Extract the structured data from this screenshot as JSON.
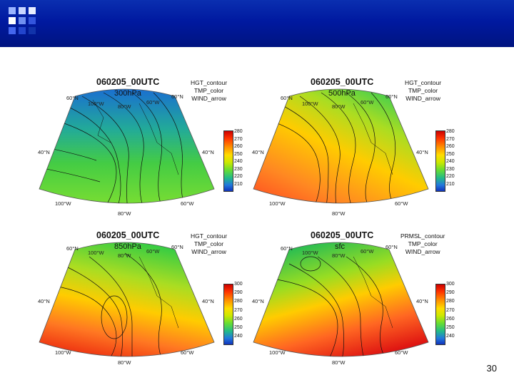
{
  "slide": {
    "page_number": "30"
  },
  "panels": [
    {
      "title": "060205_00UTC",
      "level": "300hPa",
      "vars": [
        "HGT_contour",
        "TMP_color",
        "WIND_arrow"
      ],
      "colorbar": [
        "280",
        "270",
        "260",
        "250",
        "240",
        "230",
        "220",
        "210"
      ],
      "labels": {
        "lat_nw": "60°N",
        "lat_ne": "60°N",
        "lat_w": "40°N",
        "lat_e": "40°N",
        "lon_top1": "100°W",
        "lon_top2": "80°W",
        "lon_top3": "60°W",
        "lon_bot1": "100°W",
        "lon_bot2": "80°W",
        "lon_bot3": "60°W"
      },
      "fill": "cold"
    },
    {
      "title": "060205_00UTC",
      "level": "500hPa",
      "vars": [
        "HGT_contour",
        "TMP_color",
        "WIND_arrow"
      ],
      "colorbar": [
        "280",
        "270",
        "260",
        "250",
        "240",
        "230",
        "220",
        "210"
      ],
      "labels": {
        "lat_nw": "60°N",
        "lat_ne": "60°N",
        "lat_w": "40°N",
        "lat_e": "40°N",
        "lon_top1": "100°W",
        "lon_top2": "80°W",
        "lon_top3": "60°W",
        "lon_bot1": "100°W",
        "lon_bot2": "80°W",
        "lon_bot3": "60°W"
      },
      "fill": "warm"
    },
    {
      "title": "060205_00UTC",
      "level": "850hPa",
      "vars": [
        "HGT_contour",
        "TMP_color",
        "WIND_arrow"
      ],
      "colorbar": [
        "300",
        "290",
        "280",
        "270",
        "260",
        "250",
        "240"
      ],
      "labels": {
        "lat_nw": "60°N",
        "lat_ne": "60°N",
        "lat_w": "40°N",
        "lat_e": "40°N",
        "lon_top1": "100°W",
        "lon_top2": "80°W",
        "lon_top3": "60°W",
        "lon_bot1": "100°W",
        "lon_bot2": "80°W",
        "lon_bot3": "60°W"
      },
      "fill": "mixed"
    },
    {
      "title": "060205_00UTC",
      "level": "sfc",
      "vars": [
        "PRMSL_contour",
        "TMP_color",
        "WIND_arrow"
      ],
      "colorbar": [
        "300",
        "290",
        "280",
        "270",
        "260",
        "250",
        "240"
      ],
      "labels": {
        "lat_nw": "60°N",
        "lat_ne": "60°N",
        "lat_w": "40°N",
        "lat_e": "40°N",
        "lon_top1": "100°W",
        "lon_top2": "80°W",
        "lon_top3": "60°W",
        "lon_bot1": "100°W",
        "lon_bot2": "80°W",
        "lon_bot3": "60°W"
      },
      "fill": "sfc"
    }
  ]
}
